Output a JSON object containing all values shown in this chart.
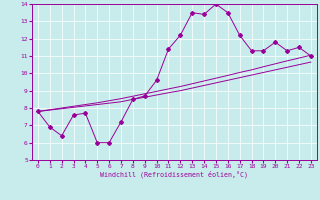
{
  "xlabel": "Windchill (Refroidissement éolien,°C)",
  "x_hours": [
    0,
    1,
    2,
    3,
    4,
    5,
    6,
    7,
    8,
    9,
    10,
    11,
    12,
    13,
    14,
    15,
    16,
    17,
    18,
    19,
    20,
    21,
    22,
    23
  ],
  "temp_line": [
    7.8,
    6.9,
    6.4,
    7.6,
    7.7,
    6.0,
    6.0,
    7.2,
    8.5,
    8.7,
    9.6,
    11.4,
    12.2,
    13.5,
    13.4,
    14.0,
    13.5,
    12.2,
    11.3,
    11.3,
    11.8,
    11.3,
    11.5,
    11.0
  ],
  "trend1": [
    7.8,
    7.88,
    7.96,
    8.04,
    8.12,
    8.2,
    8.28,
    8.36,
    8.5,
    8.62,
    8.75,
    8.88,
    9.0,
    9.15,
    9.3,
    9.45,
    9.6,
    9.75,
    9.9,
    10.05,
    10.2,
    10.35,
    10.5,
    10.65
  ],
  "trend2": [
    7.8,
    7.9,
    8.0,
    8.1,
    8.2,
    8.3,
    8.42,
    8.54,
    8.68,
    8.82,
    8.96,
    9.1,
    9.24,
    9.4,
    9.56,
    9.72,
    9.88,
    10.05,
    10.2,
    10.38,
    10.55,
    10.72,
    10.88,
    11.05
  ],
  "line_color": "#990099",
  "bg_color": "#c8ecec",
  "grid_color": "#ffffff",
  "ylim": [
    5,
    14
  ],
  "xlim": [
    -0.5,
    23.5
  ],
  "yticks": [
    5,
    6,
    7,
    8,
    9,
    10,
    11,
    12,
    13,
    14
  ]
}
